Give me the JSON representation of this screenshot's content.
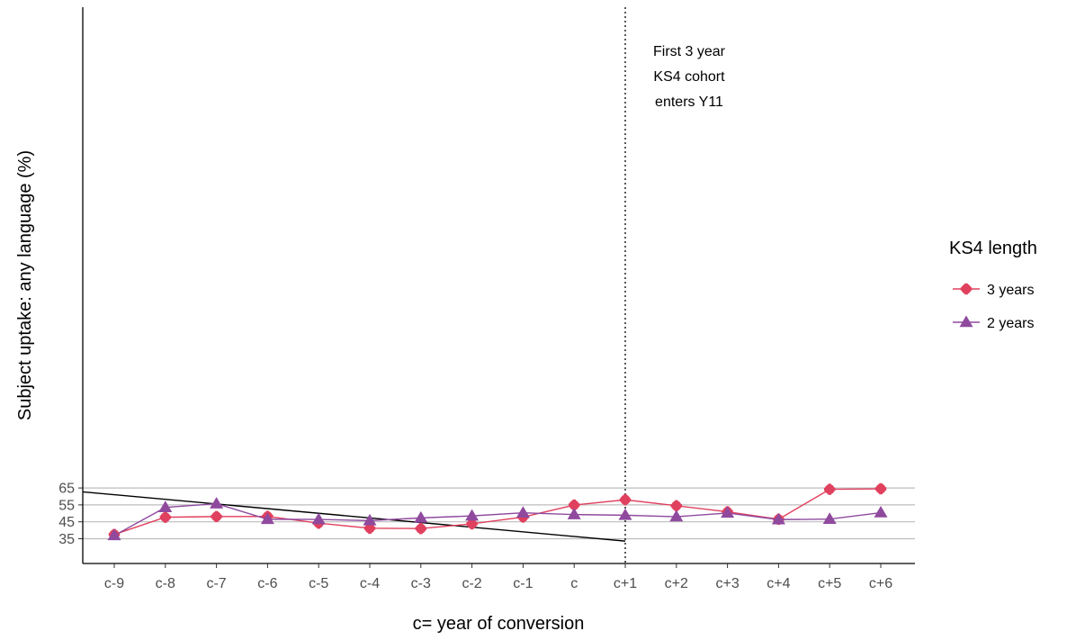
{
  "chart_data": {
    "type": "line",
    "title": "",
    "xlabel": "c= year of conversion",
    "ylabel": "Subject uptake: any language (%)",
    "categories": [
      "c-9",
      "c-8",
      "c-7",
      "c-6",
      "c-5",
      "c-4",
      "c-3",
      "c-2",
      "c-1",
      "c",
      "c+1",
      "c+2",
      "c+3",
      "c+4",
      "c+5",
      "c+6"
    ],
    "ylim": [
      33.6,
      66.4
    ],
    "yticks": [
      35,
      45,
      55,
      65
    ],
    "grid": "horizontal",
    "legend": {
      "title": "KS4 length",
      "placement": "right"
    },
    "series": [
      {
        "name": "3 years",
        "color": "#e0415e",
        "marker": "cross-circle",
        "values": [
          37.5,
          47.7,
          48.1,
          48.2,
          44.2,
          41.2,
          41.0,
          43.8,
          47.8,
          54.9,
          58.0,
          54.5,
          50.9,
          46.5,
          64.2,
          64.5
        ]
      },
      {
        "name": "2 years",
        "color": "#8f4a9e",
        "marker": "triangle",
        "values": [
          36.9,
          53.5,
          55.7,
          46.5,
          46.4,
          45.7,
          47.3,
          48.5,
          50.3,
          49.3,
          48.9,
          48.0,
          50.2,
          46.3,
          46.6,
          50.4
        ]
      }
    ],
    "reference_lines": [
      {
        "kind": "vertical-dotted",
        "at_category": "c+1"
      },
      {
        "kind": "diagonal",
        "from": {
          "x": "c-9.6",
          "y": 62.7
        },
        "to": {
          "x": "c+1",
          "y": 33.6
        }
      }
    ],
    "annotations": [
      {
        "lines": [
          "First 3 year",
          "KS4 cohort",
          "enters Y11"
        ],
        "near_category": "c+1",
        "near_y": 62.5
      }
    ]
  }
}
